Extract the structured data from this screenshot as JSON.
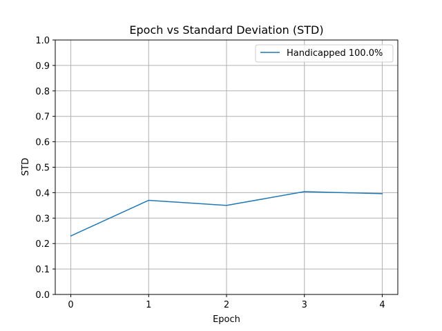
{
  "chart_data": {
    "type": "line",
    "title": "Epoch vs Standard Deviation (STD)",
    "xlabel": "Epoch",
    "ylabel": "STD",
    "xlim": [
      -0.2,
      4.2
    ],
    "ylim": [
      0.0,
      1.0
    ],
    "x_ticks": [
      "0",
      "1",
      "2",
      "3",
      "4"
    ],
    "y_ticks": [
      "0.0",
      "0.1",
      "0.2",
      "0.3",
      "0.4",
      "0.5",
      "0.6",
      "0.7",
      "0.8",
      "0.9",
      "1.0"
    ],
    "grid": true,
    "legend_position": "top-right",
    "x": [
      0,
      1,
      2,
      3,
      4
    ],
    "series": [
      {
        "name": "Handicapped 100.0%",
        "color": "#1f77b4",
        "values": [
          0.23,
          0.37,
          0.35,
          0.404,
          0.396
        ]
      }
    ]
  }
}
